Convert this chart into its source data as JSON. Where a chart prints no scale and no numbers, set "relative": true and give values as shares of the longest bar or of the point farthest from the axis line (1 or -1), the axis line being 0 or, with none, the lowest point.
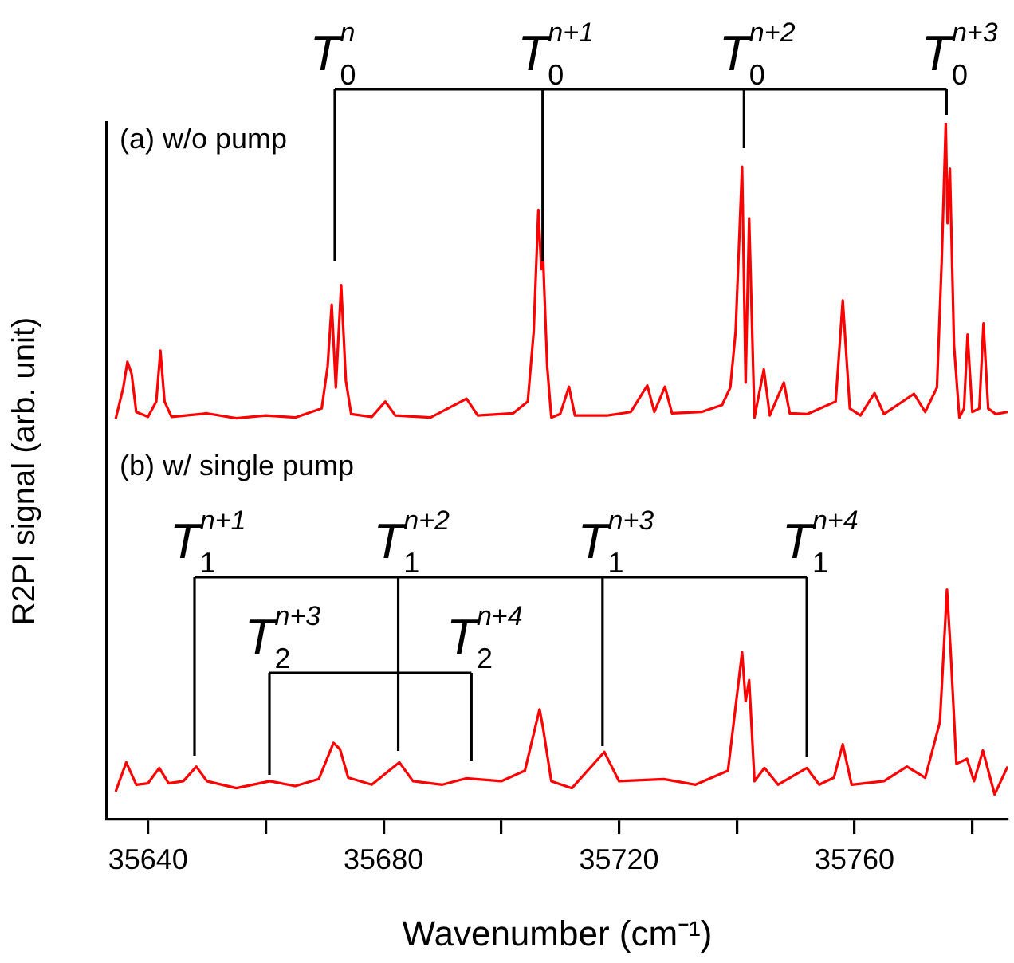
{
  "chart_data": {
    "type": "line",
    "relative": true,
    "xlabel": "Wavenumber (cm⁻¹)",
    "ylabel": "R2PI signal (arb. unit)",
    "xlim": [
      35633,
      35786
    ],
    "xticks": [
      35640,
      {
        "value": 35660,
        "label": null
      },
      35680,
      {
        "value": 35700,
        "label": null
      },
      35720,
      {
        "value": 35740,
        "label": null
      },
      35760,
      {
        "value": 35780,
        "label": null
      }
    ],
    "grid": false,
    "legend": false,
    "marker": "none",
    "line_style": "solid",
    "series": [
      {
        "color": "#ff0000",
        "x": [
          35634.5,
          35635.8,
          35636.5,
          35637.2,
          35638.0,
          35640,
          35641.4,
          35642.1,
          35642.8,
          35644,
          35650,
          35655,
          35660,
          35665,
          35669.5,
          35670.5,
          35671.2,
          35671.9,
          35672.8,
          35673.6,
          35674.5,
          35678,
          35680.3,
          35682,
          35688,
          35694.1,
          35696,
          35702,
          35704.5,
          35705.5,
          35706.3,
          35706.8,
          35707.1,
          35707.8,
          35708.5,
          35710,
          35711.5,
          35712.5,
          35718,
          35722,
          35724.8,
          35726,
          35727.8,
          35729,
          35734,
          35737.5,
          35738.9,
          35739.8,
          35740.9,
          35741.5,
          35742.1,
          35743,
          35744.6,
          35745.6,
          35748.0,
          35749,
          35752,
          35756.8,
          35758.0,
          35759.2,
          35761,
          35763.4,
          35765,
          35770.1,
          35772,
          35774,
          35774.8,
          35775.5,
          35775.8,
          35776.2,
          35776.9,
          35777.8,
          35778.6,
          35779.2,
          35780,
          35781.2,
          35781.9,
          35782.7,
          35784,
          35786
        ],
        "values": [
          0.575,
          0.62,
          0.657,
          0.64,
          0.585,
          0.578,
          0.6,
          0.673,
          0.6,
          0.578,
          0.583,
          0.576,
          0.58,
          0.577,
          0.59,
          0.65,
          0.739,
          0.62,
          0.767,
          0.63,
          0.582,
          0.578,
          0.6,
          0.58,
          0.577,
          0.604,
          0.58,
          0.583,
          0.6,
          0.7,
          0.875,
          0.79,
          0.806,
          0.65,
          0.577,
          0.582,
          0.621,
          0.58,
          0.58,
          0.585,
          0.623,
          0.585,
          0.621,
          0.583,
          0.585,
          0.595,
          0.62,
          0.7,
          0.937,
          0.627,
          0.863,
          0.577,
          0.646,
          0.58,
          0.627,
          0.583,
          0.582,
          0.6,
          0.745,
          0.59,
          0.58,
          0.612,
          0.582,
          0.611,
          0.585,
          0.62,
          0.8,
          1,
          0.856,
          0.934,
          0.68,
          0.577,
          0.59,
          0.696,
          0.585,
          0.59,
          0.712,
          0.59,
          0.582,
          0.585
        ]
      },
      {
        "color": "#ff0000",
        "x": [
          35634.5,
          35636.3,
          35638,
          35640,
          35641.9,
          35643.5,
          35646,
          35648.2,
          35650,
          35655,
          35660.7,
          35665,
          35669,
          35671.5,
          35672.6,
          35674,
          35678,
          35682.7,
          35685,
          35690,
          35694.0,
          35700,
          35704,
          35706.5,
          35707.1,
          35708.5,
          35712,
          35717.5,
          35720,
          35727.6,
          35733,
          35738.5,
          35740.9,
          35741.5,
          35742.1,
          35743,
          35744.7,
          35747,
          35751.9,
          35754,
          35756.5,
          35758.0,
          35759.5,
          35765,
          35768.9,
          35772,
          35774.5,
          35775.7,
          35776.3,
          35777.3,
          35779.1,
          35780.3,
          35781.8,
          35783.8,
          35786
        ],
        "values": [
          0.04,
          0.082,
          0.05,
          0.052,
          0.074,
          0.052,
          0.055,
          0.076,
          0.055,
          0.045,
          0.055,
          0.048,
          0.058,
          0.11,
          0.101,
          0.06,
          0.05,
          0.082,
          0.055,
          0.05,
          0.059,
          0.055,
          0.07,
          0.158,
          0.131,
          0.055,
          0.045,
          0.097,
          0.055,
          0.058,
          0.05,
          0.07,
          0.24,
          0.17,
          0.2,
          0.055,
          0.074,
          0.05,
          0.074,
          0.05,
          0.06,
          0.108,
          0.05,
          0.055,
          0.076,
          0.06,
          0.14,
          0.33,
          0.246,
          0.08,
          0.087,
          0.055,
          0.099,
          0.036,
          0.076
        ]
      }
    ],
    "annotations": [
      "(a) w/o pump",
      "T$_{0}$$^{n}$",
      "T$_{0}$$^{n+1}$",
      "T$_{0}$$^{n+2}$",
      "T$_{0}$$^{n+3}$",
      "(b) w/ single pump",
      "T$_{1}$$^{n+1}$",
      "T$_{1}$$^{n+2}$",
      "T$_{1}$$^{n+3}$",
      "T$_{1}$$^{n+4}$",
      "T$_{2}$$^{n+3}$",
      "T$_{2}$$^{n+4}$"
    ]
  }
}
